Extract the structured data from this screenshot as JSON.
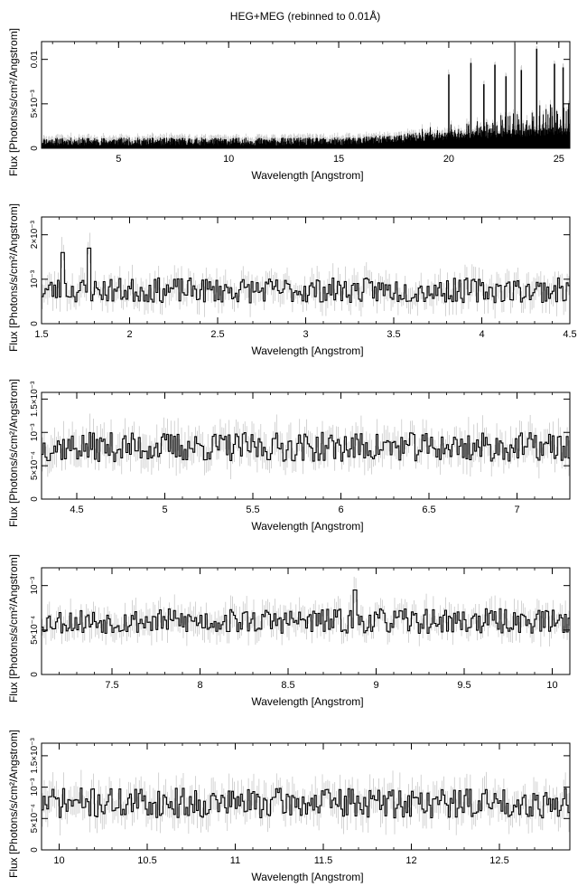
{
  "title": "HEG+MEG (rebinned to 0.01Å)",
  "colors": {
    "data": "#000000",
    "errorbar": "#c8c8c8",
    "axis": "#000000"
  },
  "chart_data": [
    {
      "type": "line",
      "series": [
        {
          "name": "",
          "seed": 11,
          "style": "full"
        }
      ],
      "xlabel": "Wavelength [Angstrom]",
      "ylabel": "Flux [Photons/s/cm²/Angstrom]",
      "xlim": [
        1.5,
        25.5
      ],
      "ylim": [
        0,
        0.012
      ],
      "xticks": [
        5,
        10,
        15,
        20,
        25
      ],
      "yticks": [
        {
          "v": 0,
          "t": "0"
        },
        {
          "v": 0.005,
          "t": "5×10⁻³"
        },
        {
          "v": 0.01,
          "t": "0.01"
        }
      ],
      "baseline": 0.00075,
      "noise": 0.00045,
      "peaks": [
        [
          20.0,
          0.0083
        ],
        [
          21.0,
          0.0096
        ],
        [
          21.6,
          0.0072
        ],
        [
          22.1,
          0.0094
        ],
        [
          22.6,
          0.0081
        ],
        [
          23.0,
          0.0118
        ],
        [
          23.3,
          0.0088
        ],
        [
          24.0,
          0.0112
        ],
        [
          24.8,
          0.0095
        ],
        [
          25.2,
          0.0091
        ]
      ],
      "grid": false
    },
    {
      "type": "line",
      "series": [
        {
          "name": "",
          "seed": 23,
          "style": "step"
        }
      ],
      "xlabel": "Wavelength [Angstrom]",
      "ylabel": "Flux [Photons/s/cm²/Angstrom]",
      "xlim": [
        1.5,
        4.5
      ],
      "ylim": [
        0,
        0.0024
      ],
      "xticks": [
        1.5,
        2,
        2.5,
        3,
        3.5,
        4,
        4.5
      ],
      "yticks": [
        {
          "v": 0,
          "t": "0"
        },
        {
          "v": 0.001,
          "t": "10⁻³"
        },
        {
          "v": 0.002,
          "t": "2×10⁻³"
        }
      ],
      "baseline": 0.00075,
      "noise": 0.00028,
      "peaks": [
        [
          1.62,
          0.0016
        ],
        [
          1.77,
          0.0017
        ]
      ],
      "grid": false
    },
    {
      "type": "line",
      "series": [
        {
          "name": "",
          "seed": 37,
          "style": "step"
        }
      ],
      "xlabel": "Wavelength [Angstrom]",
      "ylabel": "Flux [Photons/s/cm²/Angstrom]",
      "xlim": [
        4.3,
        7.3
      ],
      "ylim": [
        0,
        0.0016
      ],
      "xticks": [
        4.5,
        5,
        5.5,
        6,
        6.5,
        7
      ],
      "yticks": [
        {
          "v": 0,
          "t": "0"
        },
        {
          "v": 0.0005,
          "t": "5×10⁻⁴"
        },
        {
          "v": 0.001,
          "t": "10⁻³"
        },
        {
          "v": 0.0015,
          "t": "1.5×10⁻³"
        }
      ],
      "baseline": 0.00078,
      "noise": 0.00022,
      "peaks": [],
      "grid": false
    },
    {
      "type": "line",
      "series": [
        {
          "name": "",
          "seed": 53,
          "style": "step"
        }
      ],
      "xlabel": "Wavelength [Angstrom]",
      "ylabel": "Flux [Photons/s/cm²/Angstrom]",
      "xlim": [
        7.1,
        10.1
      ],
      "ylim": [
        0,
        0.0012
      ],
      "xticks": [
        7.5,
        8,
        8.5,
        9,
        9.5,
        10
      ],
      "yticks": [
        {
          "v": 0,
          "t": "0"
        },
        {
          "v": 0.0005,
          "t": "5×10⁻⁴"
        },
        {
          "v": 0.001,
          "t": "10⁻³"
        }
      ],
      "baseline": 0.0006,
      "noise": 0.00014,
      "peaks": [
        [
          8.88,
          0.00095
        ]
      ],
      "grid": false
    },
    {
      "type": "line",
      "series": [
        {
          "name": "",
          "seed": 71,
          "style": "step"
        }
      ],
      "xlabel": "Wavelength [Angstrom]",
      "ylabel": "Flux [Photons/s/cm²/Angstrom]",
      "xlim": [
        9.9,
        12.9
      ],
      "ylim": [
        0,
        0.0017
      ],
      "xticks": [
        10,
        10.5,
        11,
        11.5,
        12,
        12.5
      ],
      "yticks": [
        {
          "v": 0,
          "t": "0"
        },
        {
          "v": 0.0005,
          "t": "5×10⁻⁴"
        },
        {
          "v": 0.001,
          "t": "10⁻³"
        },
        {
          "v": 0.0015,
          "t": "1.5×10⁻³"
        }
      ],
      "baseline": 0.00075,
      "noise": 0.00024,
      "peaks": [],
      "grid": false
    }
  ]
}
